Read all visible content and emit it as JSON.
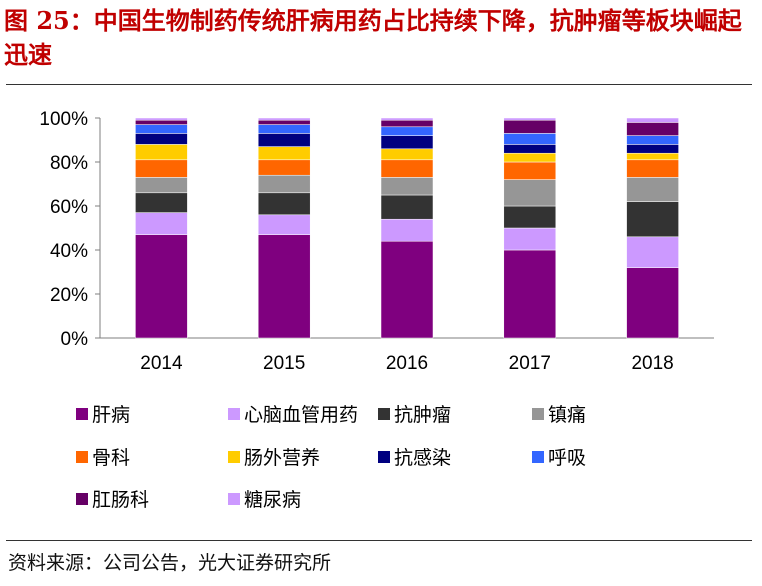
{
  "figure": {
    "title": "图 25：中国生物制药传统肝病用药占比持续下降，抗肿瘤等板块崛起迅速",
    "source": "资料来源：公司公告，光大证券研究所"
  },
  "colors": {
    "肝病": "#7f007f",
    "心脑血管用药": "#cc99ff",
    "抗肿瘤": "#333333",
    "镇痛": "#969696",
    "骨科": "#ff6600",
    "肠外营养": "#ffcc00",
    "抗感染": "#000080",
    "呼吸": "#3366ff",
    "肛肠科": "#660066",
    "糖尿病": "#cc99ff"
  },
  "chart_data": {
    "type": "bar",
    "stacked": true,
    "categories": [
      "2014",
      "2015",
      "2016",
      "2017",
      "2018"
    ],
    "ylim": [
      0,
      100
    ],
    "yticks": [
      "0%",
      "20%",
      "40%",
      "60%",
      "80%",
      "100%"
    ],
    "grid": false,
    "legend_position": "bottom",
    "series": [
      {
        "name": "肝病",
        "values": [
          47,
          47,
          44,
          40,
          32
        ]
      },
      {
        "name": "心脑血管用药",
        "values": [
          10,
          9,
          10,
          10,
          14
        ]
      },
      {
        "name": "抗肿瘤",
        "values": [
          9,
          10,
          11,
          10,
          16
        ]
      },
      {
        "name": "镇痛",
        "values": [
          7,
          8,
          8,
          12,
          11
        ]
      },
      {
        "name": "骨科",
        "values": [
          8,
          7,
          8,
          8,
          8
        ]
      },
      {
        "name": "肠外营养",
        "values": [
          7,
          6,
          5,
          4,
          3
        ]
      },
      {
        "name": "抗感染",
        "values": [
          5,
          6,
          6,
          4,
          4
        ]
      },
      {
        "name": "呼吸",
        "values": [
          4,
          4,
          4,
          5,
          4
        ]
      },
      {
        "name": "肛肠科",
        "values": [
          2,
          2,
          3,
          6,
          6
        ]
      },
      {
        "name": "糖尿病",
        "values": [
          1,
          1,
          1,
          1,
          2
        ]
      }
    ]
  }
}
